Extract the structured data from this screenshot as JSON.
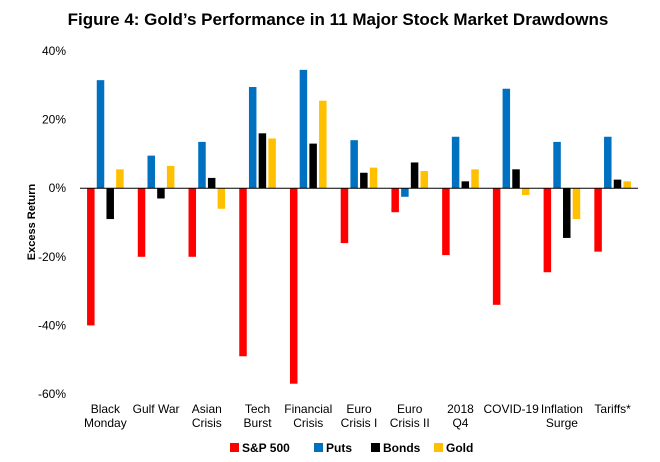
{
  "chart_data": {
    "type": "bar",
    "title": "Figure 4: Gold’s Performance in 11 Major Stock Market Drawdowns",
    "xlabel": "",
    "ylabel": "Excess Return",
    "ylim": [
      -60,
      40
    ],
    "yticks": [
      "40%",
      "20%",
      "0%",
      "-20%",
      "-40%",
      "-60%"
    ],
    "ytick_values": [
      40,
      20,
      0,
      -20,
      -40,
      -60
    ],
    "grid": false,
    "legend_position": "bottom",
    "categories": [
      [
        "Black",
        "Monday"
      ],
      [
        "Gulf War"
      ],
      [
        "Asian",
        "Crisis"
      ],
      [
        "Tech",
        "Burst"
      ],
      [
        "Financial",
        "Crisis"
      ],
      [
        "Euro",
        "Crisis I"
      ],
      [
        "Euro",
        "Crisis II"
      ],
      [
        "2018",
        "Q4"
      ],
      [
        "COVID-19"
      ],
      [
        "Inflation",
        "Surge"
      ],
      [
        "Tariffs*"
      ]
    ],
    "series": [
      {
        "name": "S&P 500",
        "color": "#ff0000",
        "values": [
          -40,
          -20,
          -20,
          -49,
          -57,
          -16,
          -7,
          -19.5,
          -34,
          -24.5,
          -18.5
        ]
      },
      {
        "name": "Puts",
        "color": "#0070c0",
        "values": [
          31.5,
          9.5,
          13.5,
          29.5,
          34.5,
          14,
          -2.5,
          15,
          29,
          13.5,
          15
        ]
      },
      {
        "name": "Bonds",
        "color": "#000000",
        "values": [
          -9,
          -3,
          3,
          16,
          13,
          4.5,
          7.5,
          2,
          5.5,
          -14.5,
          2.5
        ]
      },
      {
        "name": "Gold",
        "color": "#ffc000",
        "values": [
          5.5,
          6.5,
          -6,
          14.5,
          25.5,
          6,
          5,
          5.5,
          -2,
          -9,
          2
        ]
      }
    ]
  }
}
